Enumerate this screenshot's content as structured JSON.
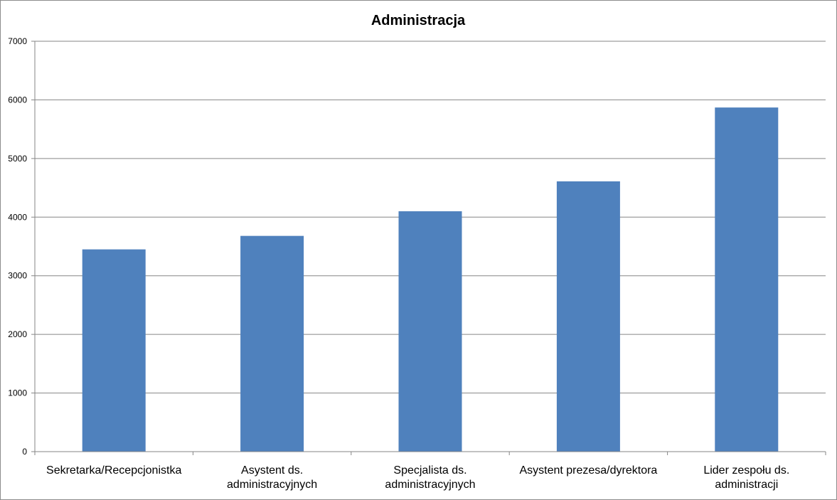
{
  "chart_data": {
    "type": "bar",
    "title": "Administracja",
    "xlabel": "",
    "ylabel": "",
    "categories": [
      [
        "Sekretarka/Recepcjonistka"
      ],
      [
        "Asystent ds.",
        "administracyjnych"
      ],
      [
        "Specjalista ds.",
        "administracyjnych"
      ],
      [
        "Asystent prezesa/dyrektora"
      ],
      [
        "Lider zespołu ds.",
        "administracji"
      ]
    ],
    "values": [
      3450,
      3680,
      4100,
      4610,
      5870
    ],
    "ylim": [
      0,
      7000
    ],
    "yticks": [
      "0",
      "1000",
      "2000",
      "3000",
      "4000",
      "5000",
      "6000",
      "7000"
    ],
    "grid": true,
    "legend": "none",
    "bar_color": "#4F81BD",
    "grid_color": "#868686"
  }
}
